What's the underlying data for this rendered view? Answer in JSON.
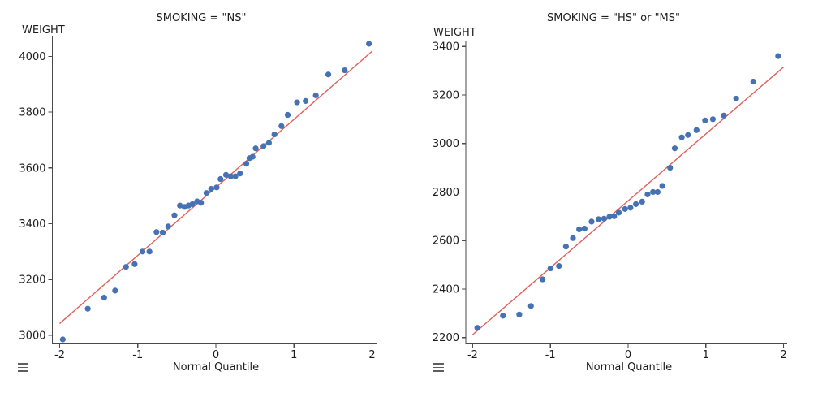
{
  "colors": {
    "marker": "#4672b4",
    "fit_line": "#e0605a",
    "axis": "#4a4a4a",
    "text": "#1c1c1c",
    "background": "#ffffff"
  },
  "chart_data": [
    {
      "type": "scatter",
      "kind": "normal-quantile-plot",
      "title": "SMOKING = \"NS\"",
      "xlabel": "Normal Quantile",
      "ylabel": "WEIGHT",
      "menu_icon": "hamburger-icon",
      "grid": false,
      "legend": "none",
      "xlim": [
        -2.0935,
        2.068
      ],
      "ylim": [
        2969,
        4074
      ],
      "x_ticks": [
        -2,
        -1,
        0,
        1,
        2
      ],
      "y_ticks": [
        3000,
        3200,
        3400,
        3600,
        3800,
        4000
      ],
      "fit_line": {
        "x": [
          -2.0,
          2.0
        ],
        "y": [
          3042,
          4018
        ]
      },
      "points": [
        [
          -1.96,
          2985
        ],
        [
          -1.64,
          3095
        ],
        [
          -1.43,
          3135
        ],
        [
          -1.29,
          3160
        ],
        [
          -1.15,
          3245
        ],
        [
          -1.04,
          3255
        ],
        [
          -0.94,
          3300
        ],
        [
          -0.85,
          3300
        ],
        [
          -0.76,
          3370
        ],
        [
          -0.68,
          3368
        ],
        [
          -0.61,
          3390
        ],
        [
          -0.53,
          3430
        ],
        [
          -0.46,
          3465
        ],
        [
          -0.4,
          3460
        ],
        [
          -0.35,
          3465
        ],
        [
          -0.3,
          3470
        ],
        [
          -0.24,
          3480
        ],
        [
          -0.19,
          3475
        ],
        [
          -0.12,
          3510
        ],
        [
          -0.06,
          3525
        ],
        [
          0.01,
          3530
        ],
        [
          0.06,
          3560
        ],
        [
          0.13,
          3575
        ],
        [
          0.19,
          3570
        ],
        [
          0.25,
          3570
        ],
        [
          0.31,
          3580
        ],
        [
          0.39,
          3615
        ],
        [
          0.43,
          3635
        ],
        [
          0.47,
          3640
        ],
        [
          0.51,
          3670
        ],
        [
          0.61,
          3678
        ],
        [
          0.68,
          3690
        ],
        [
          0.75,
          3720
        ],
        [
          0.84,
          3750
        ],
        [
          0.92,
          3790
        ],
        [
          1.04,
          3835
        ],
        [
          1.15,
          3840
        ],
        [
          1.28,
          3860
        ],
        [
          1.44,
          3935
        ],
        [
          1.65,
          3950
        ],
        [
          1.96,
          4045
        ]
      ]
    },
    {
      "type": "scatter",
      "kind": "normal-quantile-plot",
      "title": "SMOKING = \"HS\" or \"MS\"",
      "xlabel": "Normal Quantile",
      "ylabel": "WEIGHT",
      "menu_icon": "hamburger-icon",
      "grid": false,
      "legend": "none",
      "xlim": [
        -2.088,
        2.046
      ],
      "ylim": [
        2174,
        3424
      ],
      "x_ticks": [
        -2,
        -1,
        0,
        1,
        2
      ],
      "y_ticks": [
        2200,
        2400,
        2600,
        2800,
        3000,
        3200,
        3400
      ],
      "fit_line": {
        "x": [
          -2.0,
          2.0
        ],
        "y": [
          2212,
          3315
        ]
      },
      "points": [
        [
          -1.94,
          2240
        ],
        [
          -1.61,
          2290
        ],
        [
          -1.4,
          2295
        ],
        [
          -1.25,
          2330
        ],
        [
          -1.1,
          2440
        ],
        [
          -1.0,
          2485
        ],
        [
          -0.89,
          2495
        ],
        [
          -0.8,
          2575
        ],
        [
          -0.71,
          2610
        ],
        [
          -0.63,
          2646
        ],
        [
          -0.56,
          2649
        ],
        [
          -0.47,
          2678
        ],
        [
          -0.38,
          2688
        ],
        [
          -0.31,
          2690
        ],
        [
          -0.24,
          2698
        ],
        [
          -0.18,
          2700
        ],
        [
          -0.12,
          2715
        ],
        [
          -0.04,
          2730
        ],
        [
          0.03,
          2735
        ],
        [
          0.1,
          2750
        ],
        [
          0.18,
          2760
        ],
        [
          0.25,
          2790
        ],
        [
          0.32,
          2800
        ],
        [
          0.38,
          2800
        ],
        [
          0.44,
          2825
        ],
        [
          0.54,
          2900
        ],
        [
          0.6,
          2980
        ],
        [
          0.69,
          3025
        ],
        [
          0.77,
          3035
        ],
        [
          0.88,
          3055
        ],
        [
          0.99,
          3095
        ],
        [
          1.09,
          3100
        ],
        [
          1.23,
          3115
        ],
        [
          1.39,
          3185
        ],
        [
          1.61,
          3255
        ],
        [
          1.93,
          3360
        ]
      ]
    }
  ]
}
